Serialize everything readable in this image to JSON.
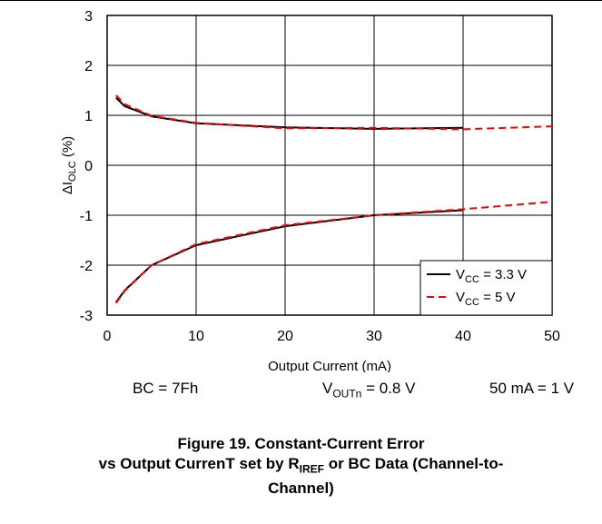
{
  "chart_data": {
    "type": "line",
    "title": "",
    "xlabel": "Output Current (mA)",
    "ylabel": {
      "prefix": "ΔI",
      "sub": "OLC",
      "suffix": " (%)"
    },
    "xlim": [
      0,
      50
    ],
    "ylim": [
      -3,
      3
    ],
    "xticks": [
      0,
      10,
      20,
      30,
      40,
      50
    ],
    "yticks": [
      3,
      2,
      1,
      0,
      -1,
      -2,
      -3
    ],
    "grid": true,
    "legend_position": "bottom-right",
    "series": [
      {
        "label": {
          "pre": "V",
          "sub": "CC",
          "post": " = 3.3 V"
        },
        "color": "#000000",
        "dash": "solid",
        "curves": [
          {
            "x": [
              1,
              2,
              5,
              10,
              20,
              30,
              40
            ],
            "y": [
              1.35,
              1.18,
              0.98,
              0.84,
              0.76,
              0.73,
              0.75
            ]
          },
          {
            "x": [
              1,
              2,
              5,
              10,
              20,
              30,
              40
            ],
            "y": [
              -2.74,
              -2.5,
              -2.0,
              -1.6,
              -1.22,
              -1.0,
              -0.9
            ]
          }
        ]
      },
      {
        "label": {
          "pre": "V",
          "sub": "CC",
          "post": " = 5 V"
        },
        "color": "#ff0000",
        "dash": "dashed",
        "curves": [
          {
            "x": [
              1,
              2,
              5,
              10,
              20,
              30,
              40,
              50
            ],
            "y": [
              1.4,
              1.22,
              0.99,
              0.85,
              0.74,
              0.75,
              0.72,
              0.78
            ]
          },
          {
            "x": [
              1,
              2,
              5,
              10,
              20,
              30,
              40,
              50
            ],
            "y": [
              -2.76,
              -2.51,
              -2.0,
              -1.58,
              -1.2,
              -1.0,
              -0.88,
              -0.73
            ]
          }
        ]
      }
    ]
  },
  "notes": {
    "bc": "BC = 7Fh",
    "vout": {
      "pre": "V",
      "sub": "OUTn",
      "post": " = 0.8 V"
    },
    "scale": "50 mA = 1 V"
  },
  "caption": {
    "line1": "Figure 19. Constant-Current Error",
    "line2_pre": "vs Output CurrenT set by R",
    "line2_sub": "IREF",
    "line2_post": " or BC Data (Channel-to-",
    "line3": "Channel)"
  }
}
